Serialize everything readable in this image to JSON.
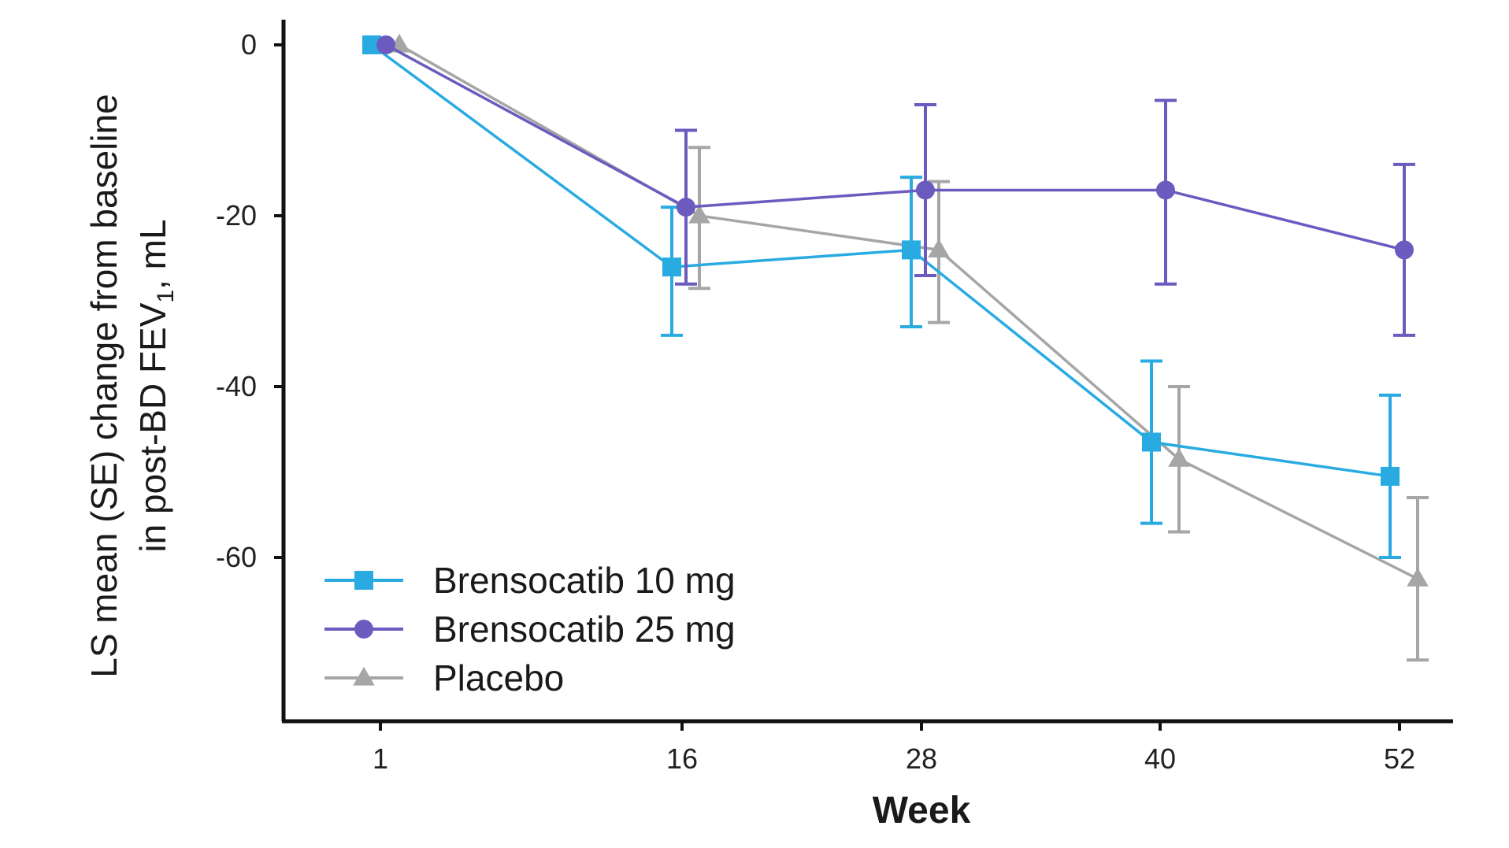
{
  "chart_data": {
    "type": "line",
    "x": [
      1,
      16,
      28,
      40,
      52
    ],
    "x_tick_labels": [
      "1",
      "16",
      "28",
      "40",
      "52"
    ],
    "xlabel": "Week",
    "ylabel_line1": "LS mean (SE) change from baseline",
    "ylabel_line2_prefix": "in post-BD FEV",
    "ylabel_subscript": "1",
    "ylabel_line2_suffix": ", mL",
    "ylim": [
      -80,
      3
    ],
    "y_ticks": [
      0,
      -20,
      -40,
      -60
    ],
    "y_tick_labels": [
      "0",
      "-20",
      "-40",
      "-60"
    ],
    "legend_position": "bottom-left",
    "series": [
      {
        "name": "Brensocatib 10 mg",
        "color": "#29abe2",
        "marker": "square",
        "values": [
          0,
          -26,
          -24,
          -46.5,
          -50.5
        ],
        "error_low": [
          0,
          -34,
          -33,
          -56,
          -60
        ],
        "error_high": [
          0,
          -19,
          -15.5,
          -37,
          -41
        ]
      },
      {
        "name": "Brensocatib 25 mg",
        "color": "#6b5bbf",
        "marker": "circle",
        "values": [
          0,
          -19,
          -17,
          -17,
          -24
        ],
        "error_low": [
          0,
          -28,
          -27,
          -28,
          -34
        ],
        "error_high": [
          0,
          -10,
          -7,
          -6.5,
          -14
        ]
      },
      {
        "name": "Placebo",
        "color": "#a6a6a6",
        "marker": "triangle",
        "values": [
          0,
          -20,
          -24,
          -48.5,
          -62.5
        ],
        "error_low": [
          0,
          -28.5,
          -32.5,
          -57,
          -72
        ],
        "error_high": [
          0,
          -12,
          -16,
          -40,
          -53
        ]
      }
    ]
  }
}
